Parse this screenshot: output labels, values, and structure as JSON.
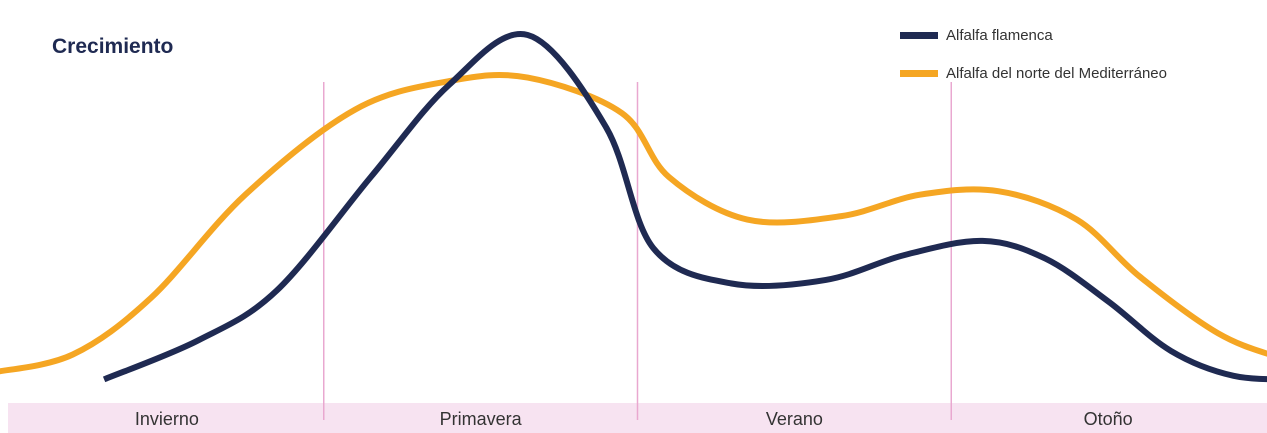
{
  "chart_data": {
    "type": "line",
    "title": "Crecimiento",
    "xlabel": "",
    "ylabel": "",
    "categories": [
      "Invierno",
      "Primavera",
      "Verano",
      "Otoño"
    ],
    "grid": false,
    "legend_position": "top-right",
    "x_range": [
      0,
      4
    ],
    "y_range": [
      0,
      100
    ],
    "series": [
      {
        "name": "Alfalfa flamenca",
        "color": "#1f2a52",
        "points": [
          [
            0.3,
            3
          ],
          [
            0.6,
            14
          ],
          [
            0.85,
            28
          ],
          [
            1.15,
            60
          ],
          [
            1.4,
            86
          ],
          [
            1.65,
            100
          ],
          [
            1.9,
            74
          ],
          [
            2.05,
            40
          ],
          [
            2.3,
            30
          ],
          [
            2.6,
            31
          ],
          [
            2.85,
            38
          ],
          [
            3.1,
            42
          ],
          [
            3.3,
            37
          ],
          [
            3.5,
            25
          ],
          [
            3.7,
            11
          ],
          [
            3.9,
            4
          ],
          [
            4.1,
            3
          ]
        ]
      },
      {
        "name": "Alfalfa del norte del Mediterráneo",
        "color": "#f5a623",
        "points": [
          [
            -0.05,
            5
          ],
          [
            0.2,
            10
          ],
          [
            0.45,
            26
          ],
          [
            0.75,
            55
          ],
          [
            1.1,
            79
          ],
          [
            1.4,
            87
          ],
          [
            1.65,
            88
          ],
          [
            1.95,
            78
          ],
          [
            2.1,
            60
          ],
          [
            2.35,
            48
          ],
          [
            2.65,
            49
          ],
          [
            2.9,
            55
          ],
          [
            3.15,
            56
          ],
          [
            3.4,
            48
          ],
          [
            3.6,
            32
          ],
          [
            3.85,
            16
          ],
          [
            4.05,
            9
          ],
          [
            4.25,
            4
          ]
        ]
      }
    ],
    "dividers": [
      1,
      2,
      3
    ],
    "divider_color": "#e9a8d0",
    "band_color": "#f7e3f1",
    "title_color": "#1f2a52",
    "text_color": "#333333"
  }
}
